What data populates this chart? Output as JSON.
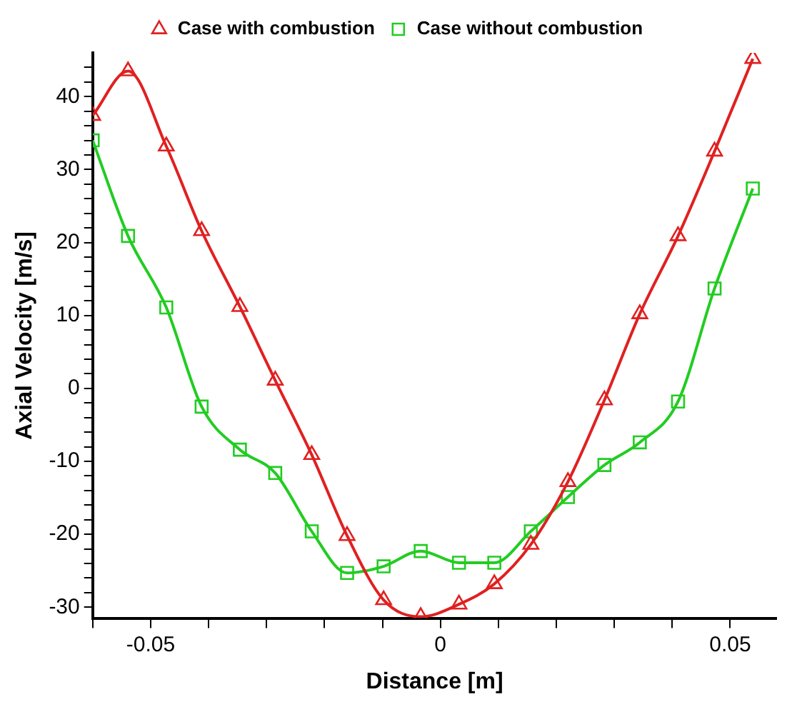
{
  "chart_data": {
    "type": "line",
    "xlabel": "Distance [m]",
    "ylabel": "Axial Velocity [m/s]",
    "xlim": [
      -0.06,
      0.058
    ],
    "ylim": [
      -31.5,
      46
    ],
    "xticks": [
      {
        "value": -0.06,
        "label": null
      },
      -0.05,
      {
        "value": -0.04,
        "label": null
      },
      {
        "value": -0.03,
        "label": null
      },
      {
        "value": -0.02,
        "label": null
      },
      {
        "value": -0.01,
        "label": null
      },
      0,
      {
        "value": 0.01,
        "label": null
      },
      {
        "value": 0.02,
        "label": null
      },
      {
        "value": 0.03,
        "label": null
      },
      {
        "value": 0.04,
        "label": null
      },
      0.05
    ],
    "yticks": [
      -30,
      {
        "value": -28,
        "label": null
      },
      {
        "value": -26,
        "label": null
      },
      {
        "value": -24,
        "label": null
      },
      {
        "value": -22,
        "label": null
      },
      -20,
      {
        "value": -18,
        "label": null
      },
      {
        "value": -16,
        "label": null
      },
      {
        "value": -14,
        "label": null
      },
      {
        "value": -12,
        "label": null
      },
      -10,
      {
        "value": -8,
        "label": null
      },
      {
        "value": -6,
        "label": null
      },
      {
        "value": -4,
        "label": null
      },
      {
        "value": -2,
        "label": null
      },
      0,
      {
        "value": 2,
        "label": null
      },
      {
        "value": 4,
        "label": null
      },
      {
        "value": 6,
        "label": null
      },
      {
        "value": 8,
        "label": null
      },
      10,
      {
        "value": 12,
        "label": null
      },
      {
        "value": 14,
        "label": null
      },
      {
        "value": 16,
        "label": null
      },
      {
        "value": 18,
        "label": null
      },
      20,
      {
        "value": 22,
        "label": null
      },
      {
        "value": 24,
        "label": null
      },
      {
        "value": 26,
        "label": null
      },
      {
        "value": 28,
        "label": null
      },
      30,
      {
        "value": 32,
        "label": null
      },
      {
        "value": 34,
        "label": null
      },
      {
        "value": 36,
        "label": null
      },
      {
        "value": 38,
        "label": null
      },
      40,
      {
        "value": 42,
        "label": null
      },
      {
        "value": 44,
        "label": null
      }
    ],
    "grid": false,
    "legend": "top",
    "line_style": "solid",
    "x": [
      -0.06,
      -0.0539,
      -0.0473,
      -0.0412,
      -0.0346,
      -0.0285,
      -0.0222,
      -0.0161,
      -0.0098,
      -0.0034,
      0.0032,
      0.0093,
      0.0156,
      0.022,
      0.0283,
      0.0344,
      0.041,
      0.0473,
      0.0539
    ],
    "series": [
      {
        "name": "Case with combustion",
        "color": "#e02020",
        "marker": "triangle",
        "values": [
          37.4,
          43.5,
          33.2,
          21.6,
          11.2,
          1.1,
          -9.1,
          -20.2,
          -29,
          -31.3,
          -29.6,
          -26.8,
          -21.4,
          -12.8,
          -1.6,
          10.2,
          20.9,
          32.5,
          45.2
        ]
      },
      {
        "name": "Case without combustion",
        "color": "#22cc22",
        "marker": "square",
        "values": [
          34,
          20.9,
          11.1,
          -2.5,
          -8.4,
          -11.6,
          -19.6,
          -25.3,
          -24.4,
          -22.3,
          -23.9,
          -23.9,
          -19.6,
          -14.9,
          -10.5,
          -7.4,
          -1.8,
          13.7,
          27.4
        ]
      }
    ]
  }
}
